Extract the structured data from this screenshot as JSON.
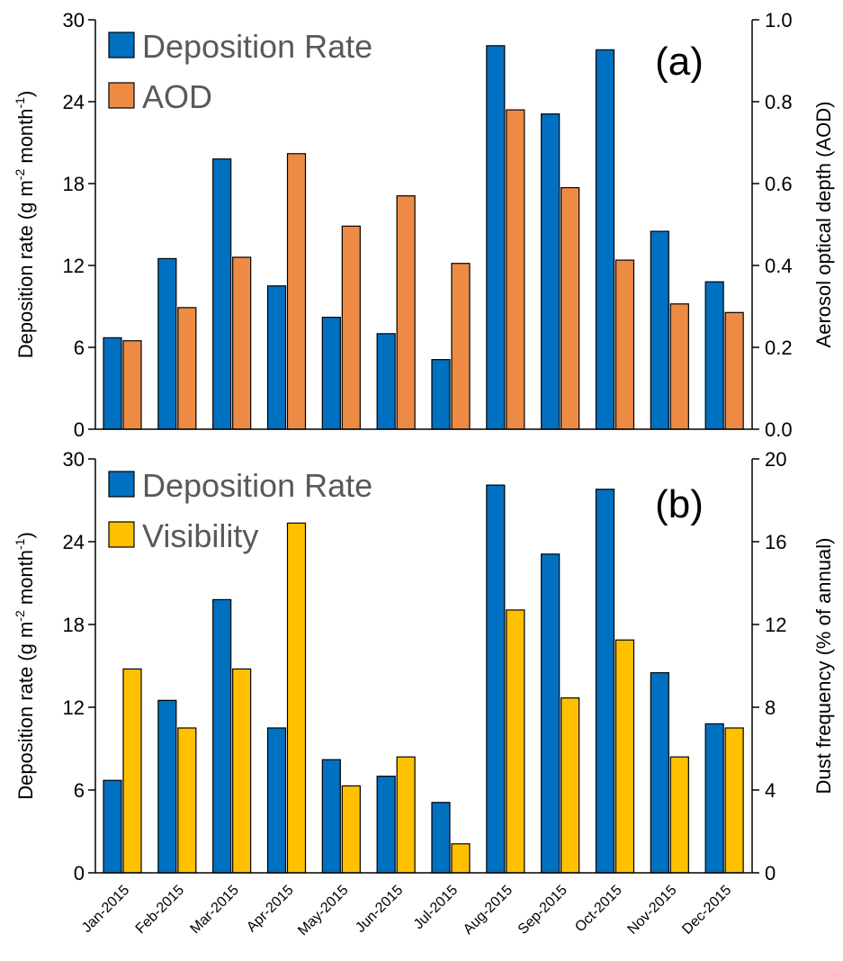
{
  "chart_data": [
    {
      "type": "bar",
      "panel_label": "(a)",
      "categories": [
        "Jan-2015",
        "Feb-2015",
        "Mar-2015",
        "Apr-2015",
        "May-2015",
        "Jun-2015",
        "Jul-2015",
        "Aug-2015",
        "Sep-2015",
        "Oct-2015",
        "Nov-2015",
        "Dec-2015"
      ],
      "ylabel_left": {
        "main": "Deposition rate (g m",
        "sup1": "-2",
        "mid": "  month",
        "sup2": "-1",
        "end": ")"
      },
      "ylabel_right": "Aerosol optical depth (AOD)",
      "ylim_left": [
        0,
        30
      ],
      "yticks_left": [
        "0",
        "6",
        "12",
        "18",
        "24",
        "30"
      ],
      "ylim_right": [
        0,
        1.0
      ],
      "yticks_right": [
        "0.0",
        "0.2",
        "0.4",
        "0.6",
        "0.8",
        "1.0"
      ],
      "legend_position": "top-left",
      "series": [
        {
          "name": "Deposition Rate",
          "axis": "left",
          "color": "#0070C0",
          "values": [
            6.7,
            12.5,
            19.8,
            10.5,
            8.2,
            7.0,
            5.1,
            28.1,
            23.1,
            27.8,
            14.5,
            10.8
          ]
        },
        {
          "name": "AOD",
          "axis": "right",
          "color": "#ED8B45",
          "values": [
            0.216,
            0.297,
            0.42,
            0.673,
            0.496,
            0.57,
            0.405,
            0.78,
            0.59,
            0.413,
            0.306,
            0.285
          ]
        }
      ]
    },
    {
      "type": "bar",
      "panel_label": "(b)",
      "categories": [
        "Jan-2015",
        "Feb-2015",
        "Mar-2015",
        "Apr-2015",
        "May-2015",
        "Jun-2015",
        "Jul-2015",
        "Aug-2015",
        "Sep-2015",
        "Oct-2015",
        "Nov-2015",
        "Dec-2015"
      ],
      "ylabel_left": {
        "main": "Deposition rate (g m",
        "sup1": "-2",
        "mid": "  month",
        "sup2": "-1",
        "end": ")"
      },
      "ylabel_right": "Dust frequency (% of annual)",
      "ylim_left": [
        0,
        30
      ],
      "yticks_left": [
        "0",
        "6",
        "12",
        "18",
        "24",
        "30"
      ],
      "ylim_right": [
        0,
        20
      ],
      "yticks_right": [
        "0",
        "4",
        "8",
        "12",
        "16",
        "20"
      ],
      "legend_position": "top-left",
      "series": [
        {
          "name": "Deposition Rate",
          "axis": "left",
          "color": "#0070C0",
          "values": [
            6.7,
            12.5,
            19.8,
            10.5,
            8.2,
            7.0,
            5.1,
            28.1,
            23.1,
            27.8,
            14.5,
            10.8
          ]
        },
        {
          "name": "Visibility",
          "axis": "right",
          "color": "#FFC000",
          "values": [
            9.85,
            7.0,
            9.85,
            16.9,
            4.2,
            5.6,
            1.4,
            12.7,
            8.45,
            11.25,
            5.6,
            7.0
          ]
        }
      ]
    }
  ]
}
